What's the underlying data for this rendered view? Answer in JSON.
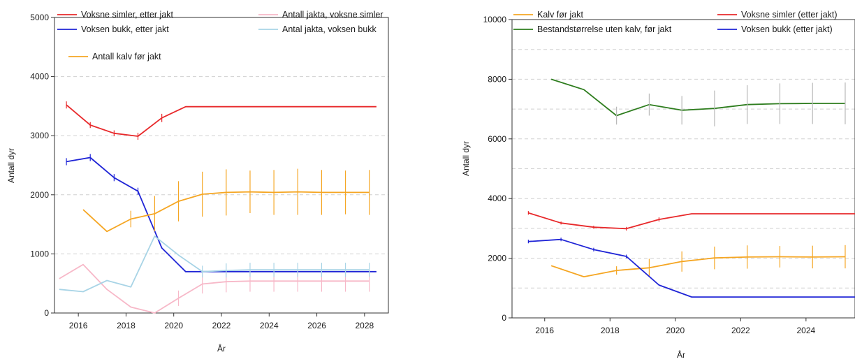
{
  "chart_data": [
    {
      "type": "line",
      "xlabel": "År",
      "ylabel": "Antall dyr",
      "xlim": [
        2015,
        2029
      ],
      "ylim": [
        0,
        5000
      ],
      "x_ticks": [
        2016,
        2018,
        2020,
        2022,
        2024,
        2026,
        2028
      ],
      "y_ticks": [
        0,
        1000,
        2000,
        3000,
        4000,
        5000
      ],
      "grid": "horizontal dashed",
      "legend": "top",
      "series": [
        {
          "name": "Voksne simler, etter jakt",
          "color": "#e8292b",
          "x": [
            2015.5,
            2016.5,
            2017.5,
            2018.5,
            2019.5,
            2020.5,
            2021.5,
            2022.5,
            2023.5,
            2024.5,
            2025.5,
            2026.5,
            2027.5,
            2028.5
          ],
          "y": [
            3520,
            3180,
            3040,
            2990,
            3300,
            3490,
            3490,
            3490,
            3490,
            3490,
            3490,
            3490,
            3490,
            3490
          ],
          "err": [
            60,
            50,
            50,
            60,
            70,
            0,
            0,
            0,
            0,
            0,
            0,
            0,
            0,
            0
          ]
        },
        {
          "name": "Voksen bukk, etter jakt",
          "color": "#1f24d6",
          "x": [
            2015.5,
            2016.5,
            2017.5,
            2018.5,
            2019.5,
            2020.5,
            2021.5,
            2022.5,
            2023.5,
            2024.5,
            2025.5,
            2026.5,
            2027.5,
            2028.5
          ],
          "y": [
            2560,
            2630,
            2290,
            2060,
            1100,
            700,
            700,
            700,
            700,
            700,
            700,
            700,
            700,
            700
          ],
          "err": [
            60,
            60,
            60,
            60,
            0,
            0,
            0,
            0,
            0,
            0,
            0,
            0,
            0,
            0
          ]
        },
        {
          "name": "Antall jakta, voksne simler",
          "color": "#f7b8c8",
          "x": [
            2015.2,
            2016.2,
            2017.2,
            2018.2,
            2019.2,
            2020.2,
            2021.2,
            2022.2,
            2023.2,
            2024.2,
            2025.2,
            2026.2,
            2027.2,
            2028.2
          ],
          "y": [
            580,
            820,
            400,
            100,
            0,
            250,
            490,
            530,
            540,
            540,
            540,
            540,
            540,
            540
          ],
          "err": [
            0,
            0,
            0,
            0,
            0,
            130,
            160,
            180,
            180,
            180,
            180,
            180,
            180,
            180
          ]
        },
        {
          "name": "Antal jakta, voksen bukk",
          "color": "#a8d4e6",
          "x": [
            2015.2,
            2016.2,
            2017.2,
            2018.2,
            2019.2,
            2020.2,
            2021.2,
            2022.2,
            2023.2,
            2024.2,
            2025.2,
            2026.2,
            2027.2,
            2028.2
          ],
          "y": [
            400,
            360,
            550,
            440,
            1300,
            980,
            700,
            720,
            730,
            730,
            730,
            730,
            730,
            730
          ],
          "err": [
            0,
            0,
            0,
            0,
            0,
            0,
            100,
            120,
            120,
            120,
            120,
            120,
            120,
            120
          ]
        },
        {
          "name": "Antall kalv før jakt",
          "color": "#f5a623",
          "x": [
            2016.2,
            2017.2,
            2018.2,
            2019.2,
            2020.2,
            2021.2,
            2022.2,
            2023.2,
            2024.2,
            2025.2,
            2026.2,
            2027.2,
            2028.2
          ],
          "y": [
            1750,
            1380,
            1590,
            1680,
            1890,
            2010,
            2040,
            2050,
            2040,
            2050,
            2040,
            2040,
            2040
          ],
          "err": [
            0,
            0,
            140,
            300,
            340,
            380,
            390,
            360,
            380,
            390,
            380,
            370,
            380
          ]
        }
      ]
    },
    {
      "type": "line",
      "xlabel": "År",
      "ylabel": "Antall dyr",
      "xlim": [
        2015,
        2025.5
      ],
      "ylim": [
        0,
        10000
      ],
      "x_ticks": [
        2016,
        2018,
        2020,
        2022,
        2024
      ],
      "y_ticks": [
        0,
        2000,
        4000,
        6000,
        8000,
        10000
      ],
      "grid": "horizontal dashed",
      "legend": "top",
      "series": [
        {
          "name": "Kalv før jakt",
          "color": "#f5a623",
          "x": [
            2016.2,
            2017.2,
            2018.2,
            2019.2,
            2020.2,
            2021.2,
            2022.2,
            2023.2,
            2024.2,
            2025.2
          ],
          "y": [
            1750,
            1380,
            1590,
            1680,
            1890,
            2010,
            2040,
            2050,
            2040,
            2050
          ],
          "err": [
            0,
            0,
            140,
            300,
            340,
            380,
            390,
            360,
            380,
            390
          ]
        },
        {
          "name": "Bestandstørrelse uten kalv, før jakt",
          "color": "#2e7d1e",
          "err_color": "#b8b8b8",
          "x": [
            2016.2,
            2017.2,
            2018.2,
            2019.2,
            2020.2,
            2021.2,
            2022.2,
            2023.2,
            2024.2,
            2025.2
          ],
          "y": [
            8000,
            7650,
            6780,
            7150,
            6960,
            7020,
            7150,
            7180,
            7190,
            7190
          ],
          "err": [
            0,
            0,
            300,
            370,
            480,
            600,
            650,
            680,
            690,
            700
          ]
        },
        {
          "name": "Voksne simler (etter jakt)",
          "color": "#e8292b",
          "x": [
            2015.5,
            2016.5,
            2017.5,
            2018.5,
            2019.5,
            2020.5,
            2021.5,
            2022.5,
            2023.5,
            2024.5,
            2025.5
          ],
          "y": [
            3520,
            3180,
            3040,
            2990,
            3300,
            3490,
            3490,
            3490,
            3490,
            3490,
            3490
          ],
          "err": [
            60,
            50,
            50,
            60,
            70,
            0,
            0,
            0,
            0,
            0,
            0
          ]
        },
        {
          "name": "Voksen bukk (etter jakt)",
          "color": "#1f24d6",
          "x": [
            2015.5,
            2016.5,
            2017.5,
            2018.5,
            2019.5,
            2020.5,
            2021.5,
            2022.5,
            2023.5,
            2024.5,
            2025.5
          ],
          "y": [
            2560,
            2630,
            2290,
            2060,
            1100,
            700,
            700,
            700,
            700,
            700,
            700
          ],
          "err": [
            60,
            60,
            60,
            60,
            0,
            0,
            0,
            0,
            0,
            0,
            0
          ]
        }
      ]
    }
  ]
}
